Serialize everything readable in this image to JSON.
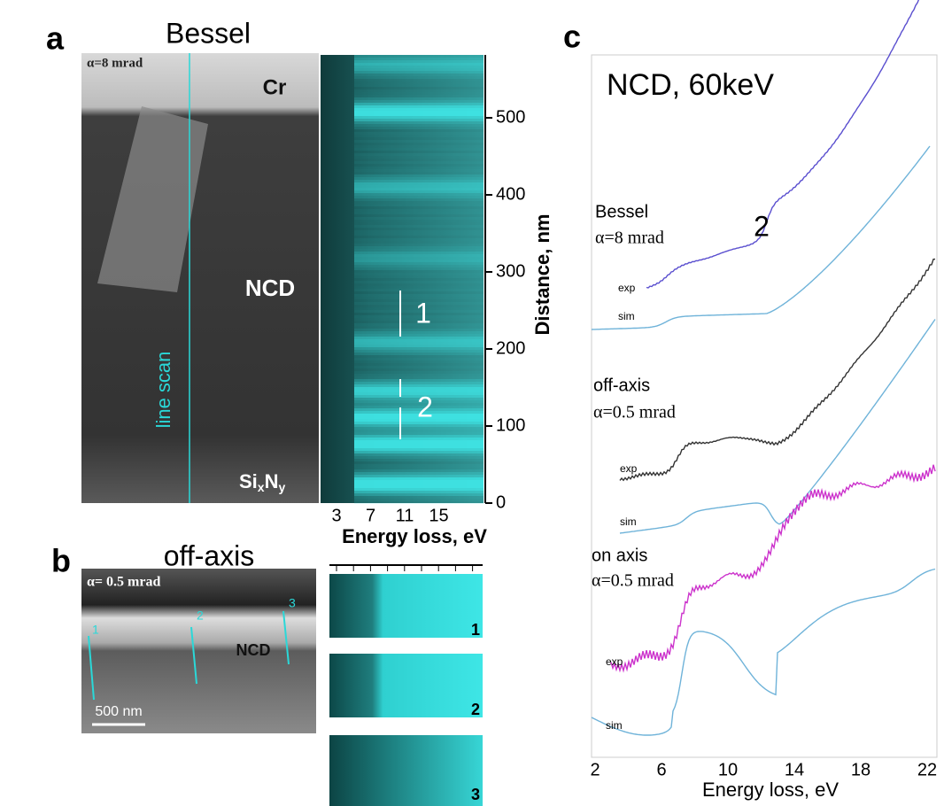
{
  "panel_a": {
    "label": "a",
    "title": "Bessel",
    "alpha": "α=8 mrad",
    "cr": "Cr",
    "ncd": "NCD",
    "line_scan": "line scan",
    "sixny": {
      "base": "Si",
      "sub1": "x",
      "mid": "N",
      "sub2": "y"
    },
    "marker_1": "1",
    "marker_2": "2",
    "y_ticks": [
      "0",
      "100",
      "200",
      "300",
      "400",
      "500"
    ],
    "y_axis_label": "Distance, nm",
    "x_ticks": [
      "3",
      "7",
      "11",
      "15"
    ],
    "x_axis_label": "Energy loss, eV"
  },
  "panel_b": {
    "label": "b",
    "title": "off-axis",
    "alpha": "α= 0.5 mrad",
    "ncd": "NCD",
    "points": [
      "1",
      "2",
      "3"
    ],
    "scale_bar": "500 nm",
    "strips": [
      "1",
      "2",
      "3"
    ]
  },
  "panel_c": {
    "label": "c",
    "title": "NCD, 60keV",
    "groups": [
      {
        "name": "Bessel",
        "alpha": "α=8 mrad",
        "exp": "exp",
        "sim": "sim"
      },
      {
        "name": "off-axis",
        "alpha": "α=0.5 mrad",
        "exp": "exp",
        "sim": "sim"
      },
      {
        "name": "on axis",
        "alpha": "α=0.5 mrad",
        "exp": "exp",
        "sim": "sim"
      }
    ],
    "marker": "2",
    "x_ticks": [
      "2",
      "6",
      "10",
      "14",
      "18",
      "22"
    ],
    "x_axis_label": "Energy loss, eV"
  }
}
